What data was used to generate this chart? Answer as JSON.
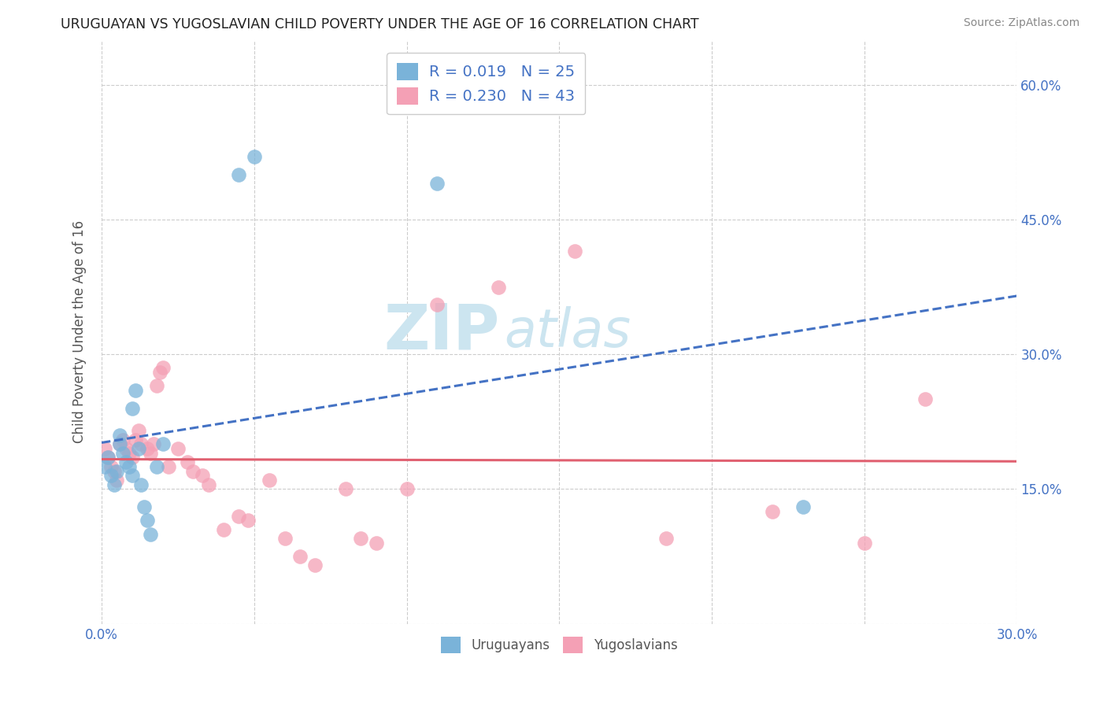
{
  "title": "URUGUAYAN VS YUGOSLAVIAN CHILD POVERTY UNDER THE AGE OF 16 CORRELATION CHART",
  "source": "Source: ZipAtlas.com",
  "ylabel": "Child Poverty Under the Age of 16",
  "x_min": 0.0,
  "x_max": 0.3,
  "y_min": 0.0,
  "y_max": 0.65,
  "uruguayan_x": [
    0.001,
    0.002,
    0.003,
    0.004,
    0.005,
    0.006,
    0.006,
    0.007,
    0.008,
    0.009,
    0.01,
    0.01,
    0.011,
    0.012,
    0.013,
    0.014,
    0.015,
    0.016,
    0.018,
    0.02,
    0.045,
    0.05,
    0.11,
    0.23
  ],
  "uruguayan_y": [
    0.175,
    0.185,
    0.165,
    0.155,
    0.17,
    0.2,
    0.21,
    0.19,
    0.18,
    0.175,
    0.165,
    0.24,
    0.26,
    0.195,
    0.155,
    0.13,
    0.115,
    0.1,
    0.175,
    0.2,
    0.5,
    0.52,
    0.49,
    0.13
  ],
  "yugoslavian_x": [
    0.001,
    0.002,
    0.003,
    0.004,
    0.005,
    0.006,
    0.007,
    0.008,
    0.009,
    0.01,
    0.011,
    0.012,
    0.013,
    0.015,
    0.016,
    0.017,
    0.018,
    0.019,
    0.02,
    0.022,
    0.025,
    0.028,
    0.03,
    0.033,
    0.035,
    0.04,
    0.045,
    0.048,
    0.055,
    0.06,
    0.065,
    0.07,
    0.08,
    0.085,
    0.09,
    0.1,
    0.11,
    0.13,
    0.155,
    0.185,
    0.22,
    0.25,
    0.27
  ],
  "yugoslavian_y": [
    0.195,
    0.185,
    0.175,
    0.17,
    0.16,
    0.2,
    0.205,
    0.195,
    0.19,
    0.185,
    0.205,
    0.215,
    0.2,
    0.195,
    0.19,
    0.2,
    0.265,
    0.28,
    0.285,
    0.175,
    0.195,
    0.18,
    0.17,
    0.165,
    0.155,
    0.105,
    0.12,
    0.115,
    0.16,
    0.095,
    0.075,
    0.065,
    0.15,
    0.095,
    0.09,
    0.15,
    0.355,
    0.375,
    0.415,
    0.095,
    0.125,
    0.09,
    0.25
  ],
  "blue_color": "#7ab3d9",
  "pink_color": "#f4a0b5",
  "blue_line_color": "#4472c4",
  "pink_line_color": "#e06070",
  "tick_color": "#4472c4",
  "grid_color": "#cccccc",
  "source_color": "#888888",
  "title_color": "#222222"
}
